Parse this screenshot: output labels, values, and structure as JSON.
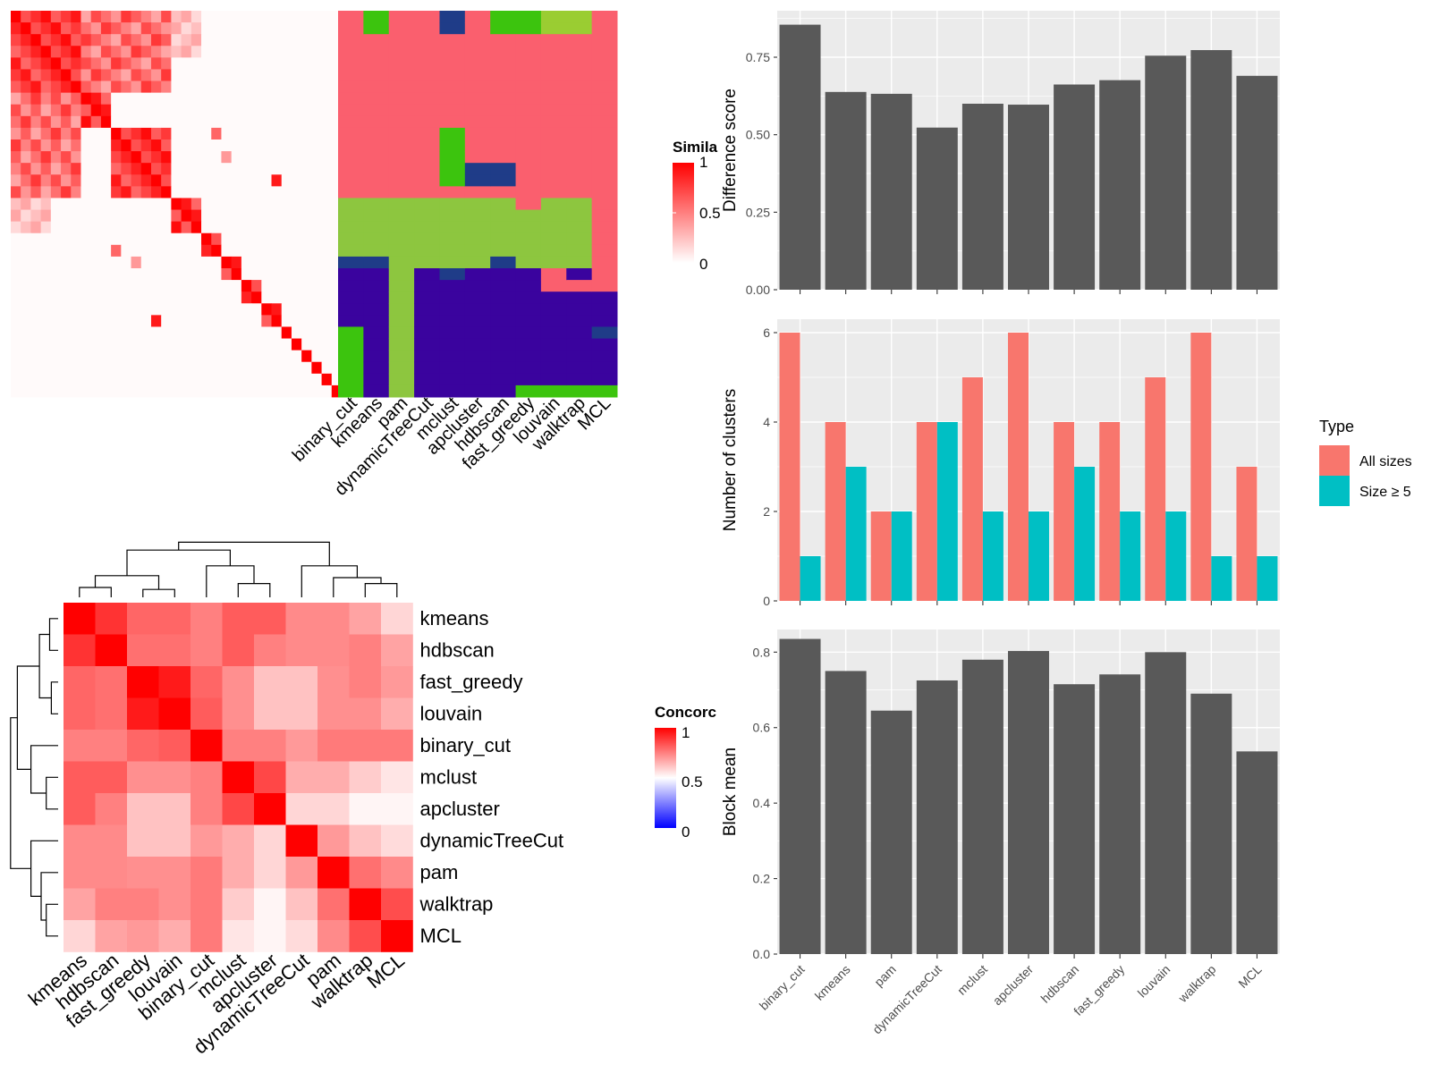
{
  "methods": [
    "binary_cut",
    "kmeans",
    "pam",
    "dynamicTreeCut",
    "mclust",
    "apcluster",
    "hdbscan",
    "fast_greedy",
    "louvain",
    "walktrap",
    "MCL"
  ],
  "colors": {
    "panel_bg": "#EBEBEB",
    "bar_gray": "#595959",
    "all_sizes": "#F8766D",
    "size_ge5": "#00BFC4",
    "heat_red": "#FF0000",
    "heat_blue": "#0000FF",
    "cl_salmon": "#FA5F6E",
    "cl_green": "#3CC40E",
    "cl_lime": "#8DC63F",
    "cl_navy": "#1F3C88",
    "cl_indigo": "#3A039E",
    "cl_yellowgreen": "#9ACD32"
  },
  "similarity_panel": {
    "legend_title": "Simila",
    "legend_ticks": [
      "1",
      "0.5",
      "0"
    ],
    "n_terms": 33,
    "blocks": [
      [
        0,
        6
      ],
      [
        7,
        9
      ],
      [
        10,
        15
      ],
      [
        16,
        18
      ],
      [
        19,
        20
      ],
      [
        21,
        22
      ],
      [
        23,
        24
      ],
      [
        25,
        26
      ]
    ],
    "extra_hits": [
      [
        14,
        26,
        0.9
      ],
      [
        10,
        20,
        0.6
      ],
      [
        12,
        21,
        0.4
      ]
    ],
    "membership": [
      [
        "salmon",
        "salmon",
        "salmon",
        "salmon",
        "salmon",
        "salmon",
        "salmon",
        "salmon",
        "salmon",
        "salmon",
        "salmon",
        "salmon",
        "salmon",
        "salmon",
        "salmon",
        "salmon",
        "lime",
        "lime",
        "lime",
        "lime",
        "lime",
        "navy",
        "indigo",
        "indigo",
        "indigo",
        "indigo",
        "indigo",
        "green",
        "green",
        "green",
        "green",
        "green",
        "green"
      ],
      [
        "green",
        "green",
        "salmon",
        "salmon",
        "salmon",
        "salmon",
        "salmon",
        "salmon",
        "salmon",
        "salmon",
        "salmon",
        "salmon",
        "salmon",
        "salmon",
        "salmon",
        "salmon",
        "lime",
        "lime",
        "lime",
        "lime",
        "lime",
        "navy",
        "indigo",
        "indigo",
        "indigo",
        "indigo",
        "indigo",
        "indigo",
        "indigo",
        "indigo",
        "indigo",
        "indigo",
        "indigo"
      ],
      [
        "salmon",
        "salmon",
        "salmon",
        "salmon",
        "salmon",
        "salmon",
        "salmon",
        "salmon",
        "salmon",
        "salmon",
        "salmon",
        "salmon",
        "salmon",
        "salmon",
        "salmon",
        "salmon",
        "lime",
        "lime",
        "lime",
        "lime",
        "lime",
        "lime",
        "lime",
        "lime",
        "lime",
        "lime",
        "lime",
        "lime",
        "lime",
        "lime",
        "lime",
        "lime",
        "lime"
      ],
      [
        "salmon",
        "salmon",
        "salmon",
        "salmon",
        "salmon",
        "salmon",
        "salmon",
        "salmon",
        "salmon",
        "salmon",
        "salmon",
        "salmon",
        "salmon",
        "salmon",
        "salmon",
        "salmon",
        "lime",
        "lime",
        "lime",
        "lime",
        "lime",
        "lime",
        "indigo",
        "indigo",
        "indigo",
        "indigo",
        "indigo",
        "indigo",
        "indigo",
        "indigo",
        "indigo",
        "indigo",
        "indigo"
      ],
      [
        "navy",
        "navy",
        "salmon",
        "salmon",
        "salmon",
        "salmon",
        "salmon",
        "salmon",
        "salmon",
        "salmon",
        "green",
        "green",
        "green",
        "green",
        "green",
        "salmon",
        "lime",
        "lime",
        "lime",
        "lime",
        "lime",
        "lime",
        "navy",
        "indigo",
        "indigo",
        "indigo",
        "indigo",
        "indigo",
        "indigo",
        "indigo",
        "indigo",
        "indigo",
        "indigo"
      ],
      [
        "salmon",
        "salmon",
        "salmon",
        "salmon",
        "salmon",
        "salmon",
        "salmon",
        "salmon",
        "salmon",
        "salmon",
        "salmon",
        "salmon",
        "salmon",
        "navy",
        "navy",
        "salmon",
        "lime",
        "lime",
        "lime",
        "lime",
        "lime",
        "lime",
        "indigo",
        "indigo",
        "indigo",
        "indigo",
        "indigo",
        "indigo",
        "indigo",
        "indigo",
        "indigo",
        "indigo",
        "indigo"
      ],
      [
        "green",
        "green",
        "salmon",
        "salmon",
        "salmon",
        "salmon",
        "salmon",
        "salmon",
        "salmon",
        "salmon",
        "salmon",
        "salmon",
        "salmon",
        "navy",
        "navy",
        "salmon",
        "lime",
        "lime",
        "lime",
        "lime",
        "lime",
        "navy",
        "indigo",
        "indigo",
        "indigo",
        "indigo",
        "indigo",
        "indigo",
        "indigo",
        "indigo",
        "indigo",
        "indigo",
        "indigo"
      ],
      [
        "green",
        "green",
        "salmon",
        "salmon",
        "salmon",
        "salmon",
        "salmon",
        "salmon",
        "salmon",
        "salmon",
        "salmon",
        "salmon",
        "salmon",
        "salmon",
        "salmon",
        "salmon",
        "salmon",
        "lime",
        "lime",
        "lime",
        "lime",
        "lime",
        "indigo",
        "indigo",
        "indigo",
        "indigo",
        "indigo",
        "indigo",
        "indigo",
        "indigo",
        "indigo",
        "indigo",
        "green"
      ],
      [
        "yellowgreen",
        "yellowgreen",
        "salmon",
        "salmon",
        "salmon",
        "salmon",
        "salmon",
        "salmon",
        "salmon",
        "salmon",
        "salmon",
        "salmon",
        "salmon",
        "salmon",
        "salmon",
        "salmon",
        "lime",
        "lime",
        "lime",
        "lime",
        "lime",
        "lime",
        "salmon",
        "salmon",
        "indigo",
        "indigo",
        "indigo",
        "indigo",
        "indigo",
        "indigo",
        "indigo",
        "indigo",
        "green"
      ],
      [
        "yellowgreen",
        "yellowgreen",
        "salmon",
        "salmon",
        "salmon",
        "salmon",
        "salmon",
        "salmon",
        "salmon",
        "salmon",
        "salmon",
        "salmon",
        "salmon",
        "salmon",
        "salmon",
        "salmon",
        "lime",
        "lime",
        "lime",
        "lime",
        "lime",
        "lime",
        "indigo",
        "salmon",
        "indigo",
        "indigo",
        "indigo",
        "indigo",
        "indigo",
        "indigo",
        "indigo",
        "indigo",
        "green"
      ],
      [
        "salmon",
        "salmon",
        "salmon",
        "salmon",
        "salmon",
        "salmon",
        "salmon",
        "salmon",
        "salmon",
        "salmon",
        "salmon",
        "salmon",
        "salmon",
        "salmon",
        "salmon",
        "salmon",
        "salmon",
        "salmon",
        "salmon",
        "salmon",
        "salmon",
        "salmon",
        "salmon",
        "salmon",
        "indigo",
        "indigo",
        "indigo",
        "navy",
        "indigo",
        "indigo",
        "indigo",
        "indigo",
        "green"
      ]
    ]
  },
  "concordance_panel": {
    "legend_title": "Concorc",
    "legend_ticks": [
      "1",
      "0.5",
      "0"
    ],
    "order": [
      "kmeans",
      "hdbscan",
      "fast_greedy",
      "louvain",
      "binary_cut",
      "mclust",
      "apcluster",
      "dynamicTreeCut",
      "pam",
      "walktrap",
      "MCL"
    ],
    "matrix": [
      [
        1.0,
        0.9,
        0.8,
        0.8,
        0.75,
        0.82,
        0.82,
        0.73,
        0.73,
        0.68,
        0.58
      ],
      [
        0.9,
        1.0,
        0.78,
        0.78,
        0.75,
        0.82,
        0.75,
        0.73,
        0.73,
        0.75,
        0.68
      ],
      [
        0.8,
        0.78,
        1.0,
        0.95,
        0.8,
        0.72,
        0.62,
        0.62,
        0.72,
        0.75,
        0.7
      ],
      [
        0.8,
        0.78,
        0.95,
        1.0,
        0.82,
        0.72,
        0.62,
        0.62,
        0.72,
        0.72,
        0.66
      ],
      [
        0.75,
        0.75,
        0.8,
        0.82,
        1.0,
        0.75,
        0.75,
        0.7,
        0.76,
        0.76,
        0.76
      ],
      [
        0.82,
        0.82,
        0.72,
        0.72,
        0.75,
        1.0,
        0.86,
        0.66,
        0.66,
        0.6,
        0.55
      ],
      [
        0.82,
        0.75,
        0.62,
        0.62,
        0.75,
        0.86,
        1.0,
        0.58,
        0.58,
        0.52,
        0.52
      ],
      [
        0.73,
        0.73,
        0.62,
        0.62,
        0.7,
        0.66,
        0.58,
        1.0,
        0.7,
        0.62,
        0.57
      ],
      [
        0.73,
        0.73,
        0.72,
        0.72,
        0.76,
        0.66,
        0.58,
        0.7,
        1.0,
        0.78,
        0.73
      ],
      [
        0.68,
        0.75,
        0.75,
        0.72,
        0.76,
        0.6,
        0.52,
        0.62,
        0.78,
        1.0,
        0.85
      ],
      [
        0.58,
        0.68,
        0.7,
        0.66,
        0.76,
        0.55,
        0.52,
        0.57,
        0.73,
        0.85,
        1.0
      ]
    ]
  },
  "chart_data": [
    {
      "type": "bar",
      "title": "",
      "xlabel": "",
      "ylabel": "Difference score",
      "categories": [
        "binary_cut",
        "kmeans",
        "pam",
        "dynamicTreeCut",
        "mclust",
        "apcluster",
        "hdbscan",
        "fast_greedy",
        "louvain",
        "walktrap",
        "MCL"
      ],
      "values": [
        0.855,
        0.638,
        0.632,
        0.523,
        0.6,
        0.597,
        0.662,
        0.676,
        0.755,
        0.773,
        0.69
      ],
      "ylim": [
        0,
        0.9
      ],
      "yticks": [
        "0.00",
        "0.25",
        "0.50",
        "0.75"
      ],
      "grid": true
    },
    {
      "type": "bar",
      "title": "",
      "xlabel": "",
      "ylabel": "Number of clusters",
      "categories": [
        "binary_cut",
        "kmeans",
        "pam",
        "dynamicTreeCut",
        "mclust",
        "apcluster",
        "hdbscan",
        "fast_greedy",
        "louvain",
        "walktrap",
        "MCL"
      ],
      "series": [
        {
          "name": "All sizes",
          "values": [
            6,
            4,
            2,
            4,
            5,
            6,
            4,
            4,
            5,
            6,
            3
          ]
        },
        {
          "name": "Size ≥ 5",
          "values": [
            1,
            3,
            2,
            4,
            2,
            2,
            3,
            2,
            2,
            1,
            1
          ]
        }
      ],
      "ylim": [
        0,
        6.3
      ],
      "yticks": [
        "0",
        "2",
        "4",
        "6"
      ],
      "legend_title": "Type",
      "legend_placement": "right",
      "grid": true
    },
    {
      "type": "bar",
      "title": "",
      "xlabel": "",
      "ylabel": "Block mean",
      "categories": [
        "binary_cut",
        "kmeans",
        "pam",
        "dynamicTreeCut",
        "mclust",
        "apcluster",
        "hdbscan",
        "fast_greedy",
        "louvain",
        "walktrap",
        "MCL"
      ],
      "values": [
        0.835,
        0.75,
        0.645,
        0.725,
        0.78,
        0.803,
        0.715,
        0.741,
        0.8,
        0.69,
        0.537
      ],
      "ylim": [
        0,
        0.86
      ],
      "yticks": [
        "0.0",
        "0.2",
        "0.4",
        "0.6",
        "0.8"
      ],
      "grid": true
    }
  ]
}
